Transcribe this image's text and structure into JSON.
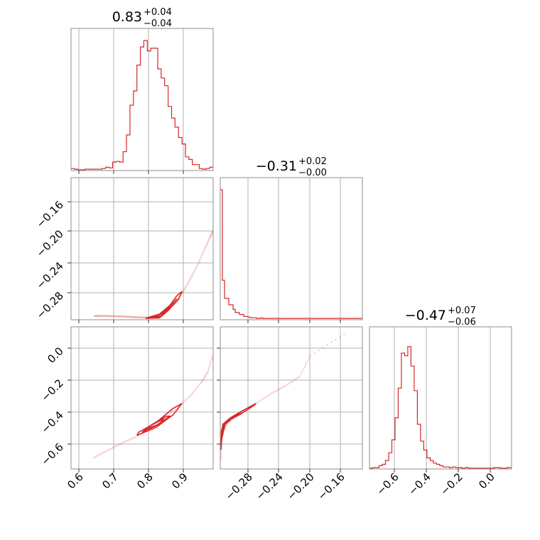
{
  "chart_data": {
    "type": "corner",
    "color": "#d62728",
    "parameters": [
      {
        "range": [
          0.575,
          0.985
        ],
        "ticks": [
          0.6,
          0.7,
          0.8,
          0.9
        ],
        "tick_labels": [
          "0.6",
          "0.7",
          "0.8",
          "0.9"
        ],
        "title": {
          "value": "0.83",
          "upper": "+0.04",
          "lower": "−0.04"
        }
      },
      {
        "range": [
          -0.3185,
          -0.125
        ],
        "ticks": [
          -0.28,
          -0.24,
          -0.2,
          -0.16
        ],
        "tick_labels": [
          "−0.28",
          "−0.24",
          "−0.20",
          "−0.16"
        ],
        "title": {
          "value": "−0.31",
          "upper": "+0.02",
          "lower": "−0.00"
        }
      },
      {
        "range": [
          -0.76,
          0.13
        ],
        "ticks": [
          -0.6,
          -0.4,
          -0.2,
          0.0
        ],
        "tick_labels": [
          "−0.6",
          "−0.4",
          "−0.2",
          "0.0"
        ],
        "title": {
          "value": "−0.47",
          "upper": "+0.07",
          "lower": "−0.06"
        }
      }
    ],
    "histograms": [
      {
        "param": 0,
        "bin_edges": [
          0.575,
          0.585,
          0.595,
          0.605,
          0.615,
          0.625,
          0.635,
          0.645,
          0.655,
          0.665,
          0.675,
          0.685,
          0.695,
          0.705,
          0.715,
          0.725,
          0.735,
          0.745,
          0.755,
          0.765,
          0.775,
          0.785,
          0.795,
          0.805,
          0.815,
          0.825,
          0.835,
          0.845,
          0.855,
          0.865,
          0.875,
          0.885,
          0.895,
          0.905,
          0.915,
          0.925,
          0.935,
          0.945,
          0.955,
          0.965,
          0.975,
          0.985
        ],
        "counts": [
          0.01,
          0.005,
          0.0,
          0.0,
          0.005,
          0.005,
          0.005,
          0.005,
          0.005,
          0.01,
          0.02,
          0.015,
          0.06,
          0.065,
          0.06,
          0.14,
          0.27,
          0.5,
          0.61,
          0.81,
          0.95,
          1.0,
          0.92,
          0.94,
          0.94,
          0.78,
          0.71,
          0.65,
          0.49,
          0.4,
          0.33,
          0.25,
          0.2,
          0.1,
          0.08,
          0.04,
          0.04,
          0.01,
          0.005,
          0.01,
          0.02
        ]
      },
      {
        "param": 1,
        "bin_edges": [
          -0.3185,
          -0.3156,
          -0.3127,
          -0.3098,
          -0.3069,
          -0.304,
          -0.3011,
          -0.2982,
          -0.2953,
          -0.2924,
          -0.2895,
          -0.2866,
          -0.2837,
          -0.2808,
          -0.2779,
          -0.275,
          -0.2721,
          -0.2692,
          -0.2663,
          -0.2634,
          -0.2605,
          -0.2576,
          -0.2547,
          -0.2518,
          -0.2489,
          -0.246,
          -0.2431,
          -0.2402,
          -0.2373,
          -0.2344,
          -0.2315,
          -0.2286,
          -0.2257,
          -0.2228,
          -0.2199,
          -0.217,
          -0.2141,
          -0.2112,
          -0.2083,
          -0.2054,
          -0.2025,
          -0.1996,
          -0.1967,
          -0.1938,
          -0.1909,
          -0.188,
          -0.1851,
          -0.1822,
          -0.1793,
          -0.1764,
          -0.1735,
          -0.1706,
          -0.1677,
          -0.1648,
          -0.1619,
          -0.159,
          -0.1561,
          -0.1532,
          -0.1503,
          -0.1474,
          -0.1445,
          -0.1416,
          -0.1387,
          -0.1358,
          -0.1329,
          -0.13,
          -0.1271,
          -0.125
        ],
        "counts": [
          1.0,
          0.3,
          0.16,
          0.16,
          0.11,
          0.11,
          0.075,
          0.05,
          0.05,
          0.035,
          0.035,
          0.02,
          0.02,
          0.015,
          0.01,
          0.01,
          0.01,
          0.005,
          0.005,
          0.01,
          0.005,
          0.005,
          0.005,
          0.005,
          0.005,
          0.005,
          0.005,
          0.005,
          0.005,
          0.005,
          0.005,
          0.005,
          0.005,
          0.005,
          0.005,
          0.005,
          0.005,
          0.005,
          0.005,
          0.005,
          0.005,
          0.005,
          0.005,
          0.005,
          0.005,
          0.005,
          0.005,
          0.005,
          0.005,
          0.005,
          0.005,
          0.005,
          0.005,
          0.005,
          0.005,
          0.005,
          0.005,
          0.005,
          0.005,
          0.005,
          0.005,
          0.005,
          0.005,
          0.005,
          0.005,
          0.005,
          0.005
        ]
      },
      {
        "param": 2,
        "bin_edges": [
          -0.76,
          -0.74,
          -0.72,
          -0.7,
          -0.68,
          -0.66,
          -0.64,
          -0.62,
          -0.6,
          -0.58,
          -0.56,
          -0.54,
          -0.52,
          -0.5,
          -0.48,
          -0.46,
          -0.44,
          -0.42,
          -0.4,
          -0.38,
          -0.36,
          -0.34,
          -0.32,
          -0.3,
          -0.28,
          -0.26,
          -0.24,
          -0.22,
          -0.2,
          -0.18,
          -0.16,
          -0.14,
          -0.12,
          -0.1,
          -0.08,
          -0.06,
          -0.04,
          -0.02,
          0.0,
          0.02,
          0.04,
          0.06,
          0.08,
          0.1,
          0.13
        ],
        "counts": [
          0.0,
          0.005,
          0.005,
          0.02,
          0.03,
          0.06,
          0.12,
          0.22,
          0.39,
          0.62,
          0.89,
          0.87,
          0.94,
          0.79,
          0.6,
          0.34,
          0.21,
          0.14,
          0.08,
          0.06,
          0.04,
          0.03,
          0.02,
          0.01,
          0.01,
          0.005,
          0.01,
          0.005,
          0.005,
          0.0,
          0.005,
          0.0,
          0.0,
          0.0,
          0.0,
          0.0,
          0.0,
          0.0,
          0.0,
          0.005,
          0.005,
          0.0,
          0.0,
          0.005
        ]
      }
    ],
    "pairs": [
      {
        "x_param": 0,
        "y_param": 1,
        "points": [
          [
            0.642,
            -0.3135
          ],
          [
            0.66,
            -0.3132
          ],
          [
            0.68,
            -0.3135
          ],
          [
            0.7,
            -0.3137
          ],
          [
            0.72,
            -0.314
          ],
          [
            0.74,
            -0.3145
          ],
          [
            0.76,
            -0.315
          ],
          [
            0.78,
            -0.3155
          ],
          [
            0.8,
            -0.3158
          ],
          [
            0.82,
            -0.315
          ],
          [
            0.84,
            -0.31
          ],
          [
            0.86,
            -0.302
          ],
          [
            0.88,
            -0.292
          ],
          [
            0.9,
            -0.279
          ],
          [
            0.92,
            -0.262
          ],
          [
            0.94,
            -0.244
          ],
          [
            0.96,
            -0.223
          ],
          [
            0.975,
            -0.207
          ],
          [
            0.985,
            -0.197
          ]
        ],
        "contours": [
          [
            [
              0.79,
              -0.3165
            ],
            [
              0.83,
              -0.316
            ],
            [
              0.855,
              -0.306
            ],
            [
              0.885,
              -0.291
            ],
            [
              0.895,
              -0.28
            ],
            [
              0.88,
              -0.286
            ],
            [
              0.86,
              -0.299
            ],
            [
              0.83,
              -0.311
            ],
            [
              0.8,
              -0.315
            ],
            [
              0.79,
              -0.3165
            ]
          ],
          [
            [
              0.8,
              -0.316
            ],
            [
              0.83,
              -0.315
            ],
            [
              0.86,
              -0.301
            ],
            [
              0.88,
              -0.29
            ],
            [
              0.87,
              -0.296
            ],
            [
              0.84,
              -0.309
            ],
            [
              0.81,
              -0.3145
            ],
            [
              0.8,
              -0.316
            ]
          ],
          [
            [
              0.81,
              -0.3155
            ],
            [
              0.835,
              -0.3135
            ],
            [
              0.86,
              -0.302
            ],
            [
              0.85,
              -0.306
            ],
            [
              0.825,
              -0.313
            ],
            [
              0.81,
              -0.3155
            ]
          ]
        ]
      },
      {
        "x_param": 0,
        "y_param": 2,
        "points": [
          [
            0.64,
            -0.69
          ],
          [
            0.68,
            -0.645
          ],
          [
            0.72,
            -0.6
          ],
          [
            0.76,
            -0.56
          ],
          [
            0.8,
            -0.51
          ],
          [
            0.84,
            -0.45
          ],
          [
            0.88,
            -0.38
          ],
          [
            0.92,
            -0.3
          ],
          [
            0.95,
            -0.22
          ],
          [
            0.97,
            -0.15
          ],
          [
            0.985,
            -0.04
          ]
        ],
        "contours": [
          [
            [
              0.765,
              -0.55
            ],
            [
              0.82,
              -0.5
            ],
            [
              0.87,
              -0.42
            ],
            [
              0.895,
              -0.35
            ],
            [
              0.87,
              -0.38
            ],
            [
              0.82,
              -0.47
            ],
            [
              0.77,
              -0.53
            ],
            [
              0.765,
              -0.55
            ]
          ],
          [
            [
              0.78,
              -0.53
            ],
            [
              0.82,
              -0.49
            ],
            [
              0.86,
              -0.43
            ],
            [
              0.85,
              -0.43
            ],
            [
              0.81,
              -0.48
            ],
            [
              0.78,
              -0.53
            ]
          ],
          [
            [
              0.79,
              -0.51
            ],
            [
              0.83,
              -0.48
            ],
            [
              0.84,
              -0.45
            ],
            [
              0.81,
              -0.48
            ],
            [
              0.79,
              -0.51
            ]
          ]
        ]
      },
      {
        "x_param": 1,
        "y_param": 2,
        "points": [
          [
            -0.3175,
            -0.7
          ],
          [
            -0.3175,
            -0.6
          ],
          [
            -0.315,
            -0.53
          ],
          [
            -0.31,
            -0.48
          ],
          [
            -0.3,
            -0.44
          ],
          [
            -0.285,
            -0.39
          ],
          [
            -0.27,
            -0.35
          ],
          [
            -0.25,
            -0.29
          ],
          [
            -0.23,
            -0.24
          ],
          [
            -0.21,
            -0.18
          ],
          [
            -0.196,
            -0.05
          ],
          [
            -0.144,
            0.1
          ]
        ],
        "contours": [
          [
            [
              -0.3175,
              -0.64
            ],
            [
              -0.317,
              -0.52
            ],
            [
              -0.309,
              -0.46
            ],
            [
              -0.292,
              -0.42
            ],
            [
              -0.272,
              -0.36
            ],
            [
              -0.27,
              -0.35
            ],
            [
              -0.29,
              -0.4
            ],
            [
              -0.305,
              -0.44
            ],
            [
              -0.315,
              -0.48
            ],
            [
              -0.3175,
              -0.64
            ]
          ],
          [
            [
              -0.317,
              -0.58
            ],
            [
              -0.316,
              -0.5
            ],
            [
              -0.305,
              -0.45
            ],
            [
              -0.29,
              -0.41
            ],
            [
              -0.3,
              -0.43
            ],
            [
              -0.312,
              -0.48
            ],
            [
              -0.317,
              -0.58
            ]
          ],
          [
            [
              -0.3165,
              -0.53
            ],
            [
              -0.314,
              -0.48
            ],
            [
              -0.305,
              -0.455
            ],
            [
              -0.312,
              -0.47
            ],
            [
              -0.3165,
              -0.53
            ]
          ]
        ]
      }
    ]
  }
}
